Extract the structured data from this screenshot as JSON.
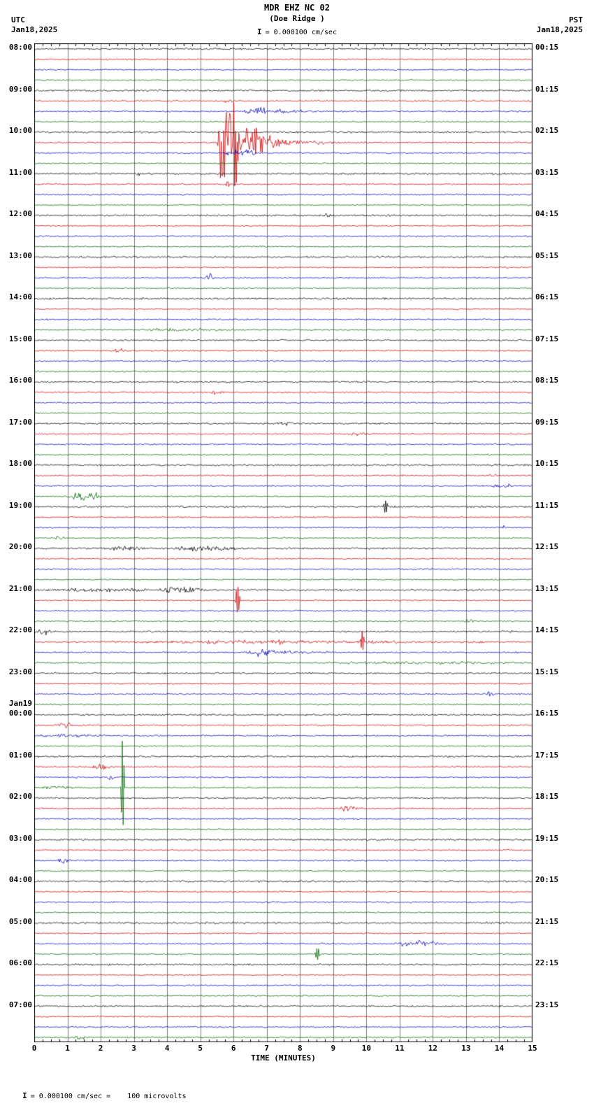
{
  "header": {
    "title": "MDR EHZ NC 02",
    "subtitle": "(Doe Ridge )",
    "scale_label": "= 0.000100 cm/sec",
    "left_tz": "UTC",
    "left_date": "Jan18,2025",
    "right_tz": "PST",
    "right_date": "Jan18,2025"
  },
  "icons": {
    "scale_bar": "I"
  },
  "footer": {
    "scale_note": "= 0.000100 cm/sec =    100 microvolts"
  },
  "axis": {
    "xlabel": "TIME (MINUTES)",
    "ticks": [
      "0",
      "1",
      "2",
      "3",
      "4",
      "5",
      "6",
      "7",
      "8",
      "9",
      "10",
      "11",
      "12",
      "13",
      "14",
      "15"
    ]
  },
  "colors": {
    "bg": "#ffffff",
    "grid": "#7a7a7a",
    "border": "#000000"
  },
  "chart_data": {
    "type": "helicorder-seismogram",
    "station": "MDR EHZ NC 02",
    "station_name": "Doe Ridge",
    "minutes_per_row": 15,
    "rows": 96,
    "x_range": [
      0,
      15
    ],
    "colors": [
      "#000000",
      "#cc0000",
      "#0000bb",
      "#006600"
    ],
    "left_labels": [
      {
        "row": 0,
        "text": "08:00"
      },
      {
        "row": 4,
        "text": "09:00"
      },
      {
        "row": 8,
        "text": "10:00"
      },
      {
        "row": 12,
        "text": "11:00"
      },
      {
        "row": 16,
        "text": "12:00"
      },
      {
        "row": 20,
        "text": "13:00"
      },
      {
        "row": 24,
        "text": "14:00"
      },
      {
        "row": 28,
        "text": "15:00"
      },
      {
        "row": 32,
        "text": "16:00"
      },
      {
        "row": 36,
        "text": "17:00"
      },
      {
        "row": 40,
        "text": "18:00"
      },
      {
        "row": 44,
        "text": "19:00"
      },
      {
        "row": 48,
        "text": "20:00"
      },
      {
        "row": 52,
        "text": "21:00"
      },
      {
        "row": 56,
        "text": "22:00"
      },
      {
        "row": 60,
        "text": "23:00"
      },
      {
        "row": 63,
        "text": "Jan19"
      },
      {
        "row": 64,
        "text": "00:00"
      },
      {
        "row": 68,
        "text": "01:00"
      },
      {
        "row": 72,
        "text": "02:00"
      },
      {
        "row": 76,
        "text": "03:00"
      },
      {
        "row": 80,
        "text": "04:00"
      },
      {
        "row": 84,
        "text": "05:00"
      },
      {
        "row": 88,
        "text": "06:00"
      },
      {
        "row": 92,
        "text": "07:00"
      }
    ],
    "right_labels": [
      {
        "row": 0,
        "text": "00:15"
      },
      {
        "row": 4,
        "text": "01:15"
      },
      {
        "row": 8,
        "text": "02:15"
      },
      {
        "row": 12,
        "text": "03:15"
      },
      {
        "row": 16,
        "text": "04:15"
      },
      {
        "row": 20,
        "text": "05:15"
      },
      {
        "row": 24,
        "text": "06:15"
      },
      {
        "row": 28,
        "text": "07:15"
      },
      {
        "row": 32,
        "text": "08:15"
      },
      {
        "row": 36,
        "text": "09:15"
      },
      {
        "row": 40,
        "text": "10:15"
      },
      {
        "row": 44,
        "text": "11:15"
      },
      {
        "row": 48,
        "text": "12:15"
      },
      {
        "row": 52,
        "text": "13:15"
      },
      {
        "row": 56,
        "text": "14:15"
      },
      {
        "row": 60,
        "text": "15:15"
      },
      {
        "row": 64,
        "text": "16:15"
      },
      {
        "row": 68,
        "text": "17:15"
      },
      {
        "row": 72,
        "text": "18:15"
      },
      {
        "row": 76,
        "text": "19:15"
      },
      {
        "row": 80,
        "text": "20:15"
      },
      {
        "row": 84,
        "text": "21:15"
      },
      {
        "row": 88,
        "text": "22:15"
      },
      {
        "row": 92,
        "text": "23:15"
      }
    ],
    "noise_amp_by_color": [
      1.1,
      0.85,
      0.9,
      0.8
    ],
    "events": [
      {
        "r": 5,
        "x0": 5.55,
        "x1": 6.0,
        "a": 3
      },
      {
        "r": 6,
        "x0": 6.25,
        "x1": 7.2,
        "a": 8
      },
      {
        "r": 6,
        "x0": 7.2,
        "x1": 9.5,
        "a": 4,
        "tau": 0.9
      },
      {
        "r": 9,
        "x0": 5.5,
        "x1": 6.3,
        "a": 100
      },
      {
        "r": 9,
        "x0": 5.55,
        "x1": 5.75,
        "a": 120
      },
      {
        "r": 9,
        "x0": 6.3,
        "x1": 15,
        "a": 40,
        "tau": 0.8
      },
      {
        "r": 10,
        "x0": 5.6,
        "x1": 6.9,
        "a": 5
      },
      {
        "r": 12,
        "x0": 3.0,
        "x1": 3.2,
        "a": 5
      },
      {
        "r": 13,
        "x0": 5.6,
        "x1": 6.1,
        "a": 4
      },
      {
        "r": 16,
        "x0": 8.6,
        "x1": 9.0,
        "a": 2.5
      },
      {
        "r": 22,
        "x0": 5.05,
        "x1": 5.5,
        "a": 6
      },
      {
        "r": 27,
        "x0": 3.0,
        "x1": 6.2,
        "a": 2.2
      },
      {
        "r": 29,
        "x0": 2.3,
        "x1": 2.8,
        "a": 4
      },
      {
        "r": 33,
        "x0": 5.3,
        "x1": 5.7,
        "a": 3
      },
      {
        "r": 36,
        "x0": 7.3,
        "x1": 7.8,
        "a": 2.5
      },
      {
        "r": 37,
        "x0": 9.2,
        "x1": 10.2,
        "a": 3
      },
      {
        "r": 41,
        "x0": 13.6,
        "x1": 14.0,
        "a": 3
      },
      {
        "r": 42,
        "x0": 13.8,
        "x1": 14.4,
        "a": 4
      },
      {
        "r": 43,
        "x0": 1.0,
        "x1": 2.1,
        "a": 9
      },
      {
        "r": 44,
        "x0": 10.5,
        "x1": 10.65,
        "a": 9
      },
      {
        "r": 46,
        "x0": 13.9,
        "x1": 14.3,
        "a": 3
      },
      {
        "r": 47,
        "x0": 0.6,
        "x1": 0.95,
        "a": 3.5
      },
      {
        "r": 48,
        "x0": 2.0,
        "x1": 3.4,
        "a": 4
      },
      {
        "r": 48,
        "x0": 4.0,
        "x1": 6.4,
        "a": 5
      },
      {
        "r": 49,
        "x0": 6.0,
        "x1": 6.4,
        "a": 3
      },
      {
        "r": 52,
        "x0": 0.1,
        "x1": 3.7,
        "a": 2.5
      },
      {
        "r": 52,
        "x0": 3.7,
        "x1": 5.3,
        "a": 6
      },
      {
        "r": 53,
        "x0": 6.05,
        "x1": 6.2,
        "a": 20
      },
      {
        "r": 55,
        "x0": 12.9,
        "x1": 13.3,
        "a": 3
      },
      {
        "r": 56,
        "x0": 0.0,
        "x1": 0.6,
        "a": 7
      },
      {
        "r": 57,
        "x0": 0.4,
        "x1": 15.0,
        "a": 2.2
      },
      {
        "r": 57,
        "x0": 7.2,
        "x1": 7.7,
        "a": 5
      },
      {
        "r": 57,
        "x0": 9.8,
        "x1": 9.95,
        "a": 13
      },
      {
        "r": 58,
        "x0": 6.3,
        "x1": 7.4,
        "a": 7
      },
      {
        "r": 58,
        "x0": 7.4,
        "x1": 9.5,
        "a": 3,
        "tau": 1.2
      },
      {
        "r": 59,
        "x0": 8.0,
        "x1": 15.0,
        "a": 2
      },
      {
        "r": 62,
        "x0": 13.5,
        "x1": 13.9,
        "a": 3.5
      },
      {
        "r": 65,
        "x0": 0.6,
        "x1": 1.3,
        "a": 6
      },
      {
        "r": 66,
        "x0": 0.0,
        "x1": 2.2,
        "a": 2.2
      },
      {
        "r": 69,
        "x0": 1.7,
        "x1": 2.3,
        "a": 6
      },
      {
        "r": 70,
        "x0": 2.1,
        "x1": 2.45,
        "a": 4
      },
      {
        "r": 71,
        "x0": 0.0,
        "x1": 1.2,
        "a": 3
      },
      {
        "r": 71,
        "x0": 2.6,
        "x1": 2.72,
        "a": 68
      },
      {
        "r": 73,
        "x0": 9.1,
        "x1": 9.9,
        "a": 5
      },
      {
        "r": 78,
        "x0": 0.65,
        "x1": 1.1,
        "a": 5
      },
      {
        "r": 86,
        "x0": 10.8,
        "x1": 12.4,
        "a": 6
      },
      {
        "r": 87,
        "x0": 8.45,
        "x1": 8.6,
        "a": 9
      },
      {
        "r": 95,
        "x0": 1.2,
        "x1": 1.55,
        "a": 4
      }
    ]
  }
}
